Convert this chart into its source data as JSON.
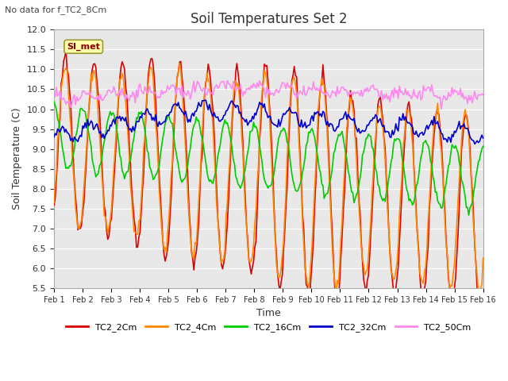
{
  "title": "Soil Temperatures Set 2",
  "xlabel": "Time",
  "ylabel": "Soil Temperature (C)",
  "top_left_note": "No data for f_TC2_8Cm",
  "legend_box_label": "SI_met",
  "ylim": [
    5.5,
    12.0
  ],
  "yticks": [
    5.5,
    6.0,
    6.5,
    7.0,
    7.5,
    8.0,
    8.5,
    9.0,
    9.5,
    10.0,
    10.5,
    11.0,
    11.5,
    12.0
  ],
  "xtick_labels": [
    "Feb 1",
    "Feb 2",
    "Feb 3",
    "Feb 4",
    "Feb 5",
    "Feb 6",
    "Feb 7",
    "Feb 8",
    "Feb 9",
    "Feb 10",
    "Feb 11",
    "Feb 12",
    "Feb 13",
    "Feb 14",
    "Feb 15",
    "Feb 16"
  ],
  "series": [
    {
      "name": "TC2_2Cm",
      "color": "#dd0000"
    },
    {
      "name": "TC2_4Cm",
      "color": "#ff8800"
    },
    {
      "name": "TC2_16Cm",
      "color": "#00cc00"
    },
    {
      "name": "TC2_32Cm",
      "color": "#0000cc"
    },
    {
      "name": "TC2_50Cm",
      "color": "#ff88ee"
    }
  ],
  "plot_bg_color": "#e8e8e8",
  "fig_bg_color": "#ffffff",
  "grid_color": "#ffffff",
  "title_fontsize": 12,
  "axis_label_fontsize": 9,
  "tick_fontsize": 8,
  "line_width": 1.2
}
